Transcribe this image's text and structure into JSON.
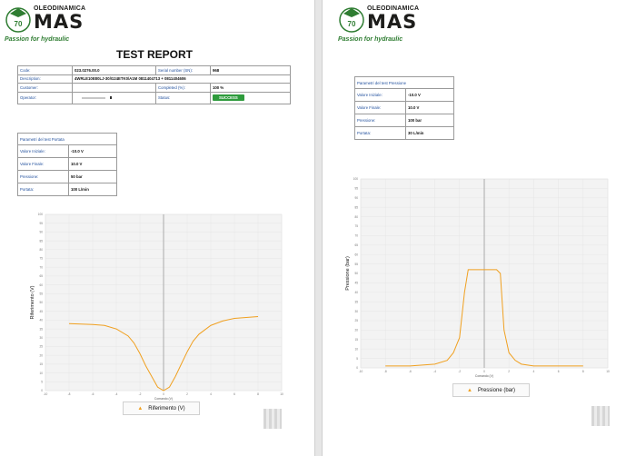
{
  "brand": {
    "top_text": "OLEODINAMICA",
    "main_text": "MAS",
    "slogan": "Passion for hydraulic",
    "badge_number": "70",
    "color_green": "#2f7d32"
  },
  "left_page": {
    "title": "TEST REPORT",
    "info_table": {
      "code_label": "Code:",
      "code_value": "023.0276.00.0",
      "serial_label": "Serial number (SN):",
      "serial_value": "968",
      "description_label": "Description:",
      "description_value": "4WRLE10E80LJ-30/G24ETK0/A1M 0811404713 + 0811404606",
      "customer_label": "Customer:",
      "customer_value": "",
      "completed_label": "Completed (%):",
      "completed_value": "100 %",
      "operator_label": "Operator:",
      "operator_value": "",
      "status_label": "Status:",
      "status_value": "SUCCESS",
      "status_color": "#2e9b3c"
    },
    "params": {
      "header": "Parametri del test Portata",
      "rows": [
        {
          "label": "Valore Iniziale:",
          "value": "-10.0 V"
        },
        {
          "label": "Valore Finale:",
          "value": "10.0 V"
        },
        {
          "label": "Pressione:",
          "value": "50 bar"
        },
        {
          "label": "Portata:",
          "value": "100 L/min"
        }
      ]
    },
    "legend": "Riferimento (V)"
  },
  "right_page": {
    "params": {
      "header": "Parametri del test Pressione",
      "rows": [
        {
          "label": "Valore Iniziale:",
          "value": "-10.0 V"
        },
        {
          "label": "Valore Finale:",
          "value": "10.0 V"
        },
        {
          "label": "Pressione:",
          "value": "100 bar"
        },
        {
          "label": "Portata:",
          "value": "30 L/min"
        }
      ]
    },
    "legend": "Pressione (bar)"
  },
  "chart_data": [
    {
      "type": "line",
      "ylabel": "Riferimento (V)",
      "xlabel": "Comando (V)",
      "xlim": [
        -10,
        10
      ],
      "ylim": [
        0,
        100
      ],
      "x_ticks": [
        -10,
        -8,
        -6,
        -4,
        -2,
        0,
        2,
        4,
        6,
        8,
        10
      ],
      "y_ticks": [
        0,
        5,
        10,
        15,
        20,
        25,
        30,
        35,
        40,
        45,
        50,
        55,
        60,
        65,
        70,
        75,
        80,
        85,
        90,
        95,
        100
      ],
      "grid": true,
      "legend_position": "bottom-center",
      "line_color": "#f0a020",
      "series": [
        {
          "name": "Riferimento (V)",
          "x": [
            -8,
            -6,
            -5,
            -4,
            -3,
            -2.5,
            -2,
            -1.5,
            -1,
            -0.5,
            0,
            0.5,
            1,
            1.5,
            2,
            2.5,
            3,
            4,
            5,
            6,
            7,
            8
          ],
          "y": [
            38,
            37.5,
            37,
            35,
            31,
            27,
            21,
            14,
            8,
            2,
            0,
            2,
            8,
            15,
            22,
            28,
            32,
            37,
            39.5,
            41,
            41.5,
            42
          ]
        }
      ]
    },
    {
      "type": "line",
      "ylabel": "Pressione (bar)",
      "xlabel": "Comando (V)",
      "xlim": [
        -10,
        10
      ],
      "ylim": [
        0,
        100
      ],
      "x_ticks": [
        -10,
        -8,
        -6,
        -4,
        -2,
        0,
        2,
        4,
        6,
        8,
        10
      ],
      "y_ticks": [
        0,
        5,
        10,
        15,
        20,
        25,
        30,
        35,
        40,
        45,
        50,
        55,
        60,
        65,
        70,
        75,
        80,
        85,
        90,
        95,
        100
      ],
      "grid": true,
      "legend_position": "bottom-center",
      "line_color": "#f0a020",
      "series": [
        {
          "name": "Pressione (bar)",
          "x": [
            -8,
            -6,
            -4,
            -3,
            -2.5,
            -2,
            -1.6,
            -1.3,
            -1,
            0,
            1,
            1.3,
            1.6,
            2,
            2.5,
            3,
            4,
            6,
            8
          ],
          "y": [
            1,
            1,
            2,
            4,
            8,
            16,
            40,
            52,
            52,
            52,
            52,
            50,
            20,
            8,
            4,
            2,
            1,
            1,
            1
          ]
        }
      ]
    }
  ]
}
